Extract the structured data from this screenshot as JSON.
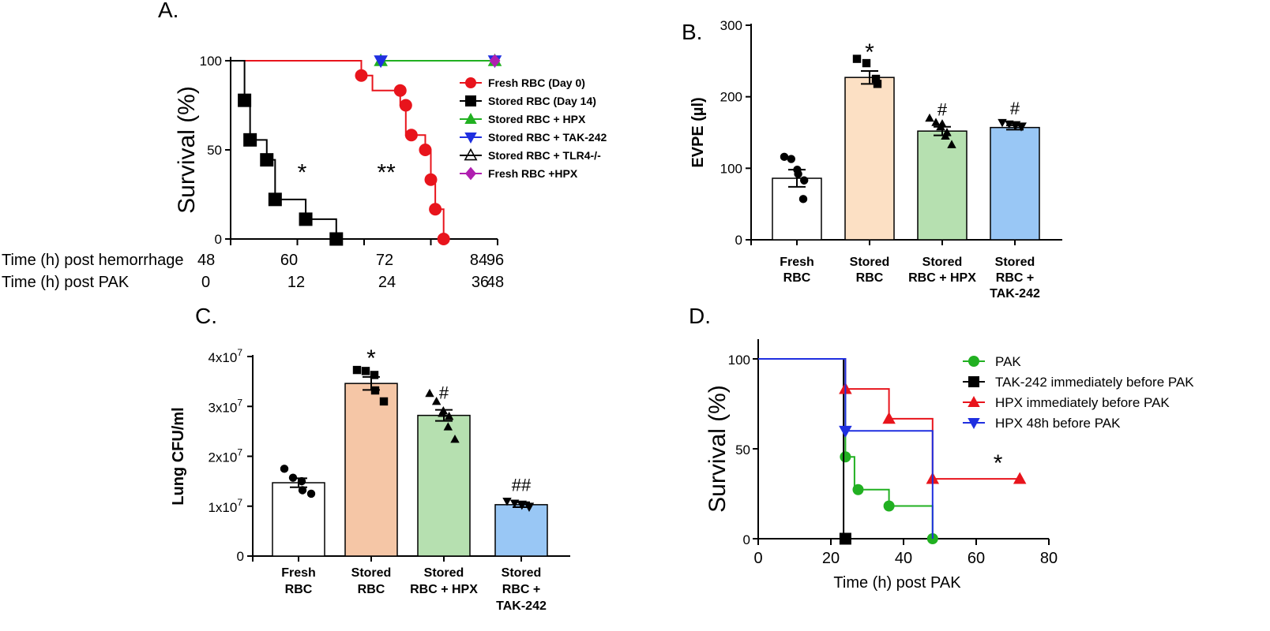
{
  "chart_data": [
    {
      "panel": "A.",
      "type": "line",
      "ylabel": "Survival (%)",
      "xrow_labels": [
        "Time (h) post hemorrhage",
        "Time (h) post PAK"
      ],
      "x_ticks_hemorrhage": [
        "48",
        "60",
        "72",
        "84",
        "96"
      ],
      "x_ticks_pak": [
        "0",
        "12",
        "24",
        "36",
        "48"
      ],
      "y_ticks": [
        "0",
        "50",
        "100"
      ],
      "xlim": [
        48,
        96
      ],
      "ylim": [
        0,
        100
      ],
      "legend": [
        {
          "label": "Fresh RBC (Day 0)",
          "color": "#e8141c",
          "marker": "circle"
        },
        {
          "label": "Stored RBC (Day 14)",
          "color": "#000000",
          "marker": "square"
        },
        {
          "label": "Stored RBC + HPX",
          "color": "#21b021",
          "marker": "triangle-up"
        },
        {
          "label": "Stored RBC + TAK-242",
          "color": "#1f2fe0",
          "marker": "triangle-down"
        },
        {
          "label": "Stored RBC + TLR4-/-",
          "color": "#000000",
          "marker": "triangle-open"
        },
        {
          "label": "Fresh RBC +HPX",
          "color": "#b01fb0",
          "marker": "diamond"
        }
      ],
      "series": [
        {
          "id": "fresh",
          "color": "#e8141c",
          "marker": "circle",
          "points": [
            [
              48,
              100
            ],
            [
              71.5,
              100
            ],
            [
              71.5,
              91.7
            ],
            [
              73.5,
              91.7
            ],
            [
              73.5,
              83.3
            ],
            [
              78.5,
              83.3
            ],
            [
              78.5,
              75
            ],
            [
              79.5,
              75
            ],
            [
              79.5,
              58.3
            ],
            [
              83,
              58.3
            ],
            [
              83,
              50
            ],
            [
              84,
              50
            ],
            [
              84,
              33.3
            ],
            [
              84.8,
              33.3
            ],
            [
              84.8,
              16.7
            ],
            [
              86.3,
              16.7
            ],
            [
              86.3,
              0
            ]
          ],
          "markers": [
            [
              71.5,
              91.7
            ],
            [
              78.5,
              83.3
            ],
            [
              79.5,
              75
            ],
            [
              80.5,
              58.3
            ],
            [
              83,
              50
            ],
            [
              84,
              33.3
            ],
            [
              84.8,
              16.7
            ],
            [
              86.3,
              0
            ]
          ]
        },
        {
          "id": "stored",
          "color": "#000000",
          "marker": "square",
          "points": [
            [
              48,
              100
            ],
            [
              50.5,
              100
            ],
            [
              50.5,
              77.8
            ],
            [
              51.5,
              77.8
            ],
            [
              51.5,
              55.6
            ],
            [
              54.5,
              55.6
            ],
            [
              54.5,
              44.4
            ],
            [
              56,
              44.4
            ],
            [
              56,
              22.2
            ],
            [
              61.5,
              22.2
            ],
            [
              61.5,
              11.1
            ],
            [
              67,
              11.1
            ],
            [
              67,
              0
            ]
          ],
          "markers": [
            [
              50.5,
              77.8
            ],
            [
              51.5,
              55.6
            ],
            [
              54.5,
              44.4
            ],
            [
              56,
              22.2
            ],
            [
              61.5,
              11.1
            ],
            [
              67,
              0
            ]
          ]
        },
        {
          "id": "hpx",
          "color": "#21b021",
          "marker": "triangle-up",
          "points": [
            [
              75,
              100
            ],
            [
              95.5,
              100
            ]
          ],
          "markers": [
            [
              75,
              100
            ],
            [
              95.5,
              100
            ]
          ]
        },
        {
          "id": "tak",
          "color": "#1f2fe0",
          "marker": "triangle-down",
          "points": [],
          "markers": [
            [
              75,
              100
            ],
            [
              95.5,
              100
            ]
          ]
        },
        {
          "id": "tlr4",
          "color": "#000000",
          "marker": "triangle-open",
          "points": [],
          "markers": []
        },
        {
          "id": "freshhpx",
          "color": "#b01fb0",
          "marker": "diamond",
          "points": [],
          "markers": [
            [
              95.5,
              100
            ]
          ]
        }
      ],
      "annotations": [
        {
          "text": "*",
          "x": 60,
          "y": 40
        },
        {
          "text": "**",
          "x": 76,
          "y": 40
        }
      ]
    },
    {
      "panel": "B.",
      "type": "bar",
      "ylabel": "EVPE (µl)",
      "categories": [
        [
          "Fresh",
          "RBC"
        ],
        [
          "Stored",
          "RBC"
        ],
        [
          "Stored",
          "RBC + HPX"
        ],
        [
          "Stored",
          "RBC +",
          "TAK-242"
        ]
      ],
      "values": [
        86,
        227,
        152,
        157
      ],
      "errors": [
        12,
        9,
        6,
        3
      ],
      "colors": [
        "#ffffff",
        "#fce0c4",
        "#b6e0b0",
        "#99c7f5"
      ],
      "markers": [
        "circle",
        "square",
        "triangle-up",
        "triangle-down"
      ],
      "points": [
        [
          116,
          113,
          92,
          98,
          83,
          57
        ],
        [
          253,
          247,
          225,
          218
        ],
        [
          170,
          164,
          162,
          158,
          150,
          145,
          133
        ],
        [
          164,
          162,
          161,
          160,
          159,
          158
        ]
      ],
      "ylim": [
        0,
        300
      ],
      "y_ticks": [
        "0",
        "100",
        "200",
        "300"
      ],
      "annotations": [
        "",
        "*",
        "#",
        "#"
      ]
    },
    {
      "panel": "C.",
      "type": "bar",
      "ylabel": "Lung CFU/ml",
      "categories": [
        [
          "Fresh",
          "RBC"
        ],
        [
          "Stored",
          "RBC"
        ],
        [
          "Stored",
          "RBC + HPX"
        ],
        [
          "Stored",
          "RBC +",
          "TAK-242"
        ]
      ],
      "values": [
        14700000,
        34600000,
        28200000,
        10300000
      ],
      "errors": [
        900000,
        1300000,
        1100000,
        500000
      ],
      "colors": [
        "#ffffff",
        "#f5c6a6",
        "#b6e0b0",
        "#99c7f5"
      ],
      "markers": [
        "circle",
        "square",
        "triangle-up",
        "triangle-down"
      ],
      "points": [
        [
          17500000,
          15700000,
          15000000,
          13200000,
          12500000
        ],
        [
          37300000,
          37100000,
          36300000,
          33200000,
          31000000
        ],
        [
          32600000,
          31000000,
          29100000,
          28600000,
          28000000,
          25900000,
          23400000
        ],
        [
          11000000,
          10600000,
          10400000,
          10200000,
          10000000,
          9800000
        ]
      ],
      "ylim": [
        0,
        40000000
      ],
      "y_ticks": [
        {
          "base": "1x10",
          "exp": "7",
          "value": 10000000
        },
        {
          "base": "2x10",
          "exp": "7",
          "value": 20000000
        },
        {
          "base": "3x10",
          "exp": "7",
          "value": 30000000
        },
        {
          "base": "4x10",
          "exp": "7",
          "value": 40000000
        }
      ],
      "y_zero": "0",
      "annotations": [
        "",
        "*",
        "#",
        "##"
      ]
    },
    {
      "panel": "D.",
      "type": "line",
      "ylabel": "Survival (%)",
      "xlabel": "Time (h) post PAK",
      "x_ticks": [
        "0",
        "20",
        "40",
        "60",
        "80"
      ],
      "y_ticks": [
        "0",
        "50",
        "100"
      ],
      "xlim": [
        0,
        80
      ],
      "ylim": [
        0,
        100
      ],
      "legend": [
        {
          "label": "PAK",
          "color": "#21b021",
          "marker": "circle"
        },
        {
          "label": "TAK-242 immediately before PAK",
          "color": "#000000",
          "marker": "square"
        },
        {
          "label": "HPX immediately before PAK",
          "color": "#e8141c",
          "marker": "triangle-up"
        },
        {
          "label": "HPX 48h before PAK",
          "color": "#1f2fe0",
          "marker": "triangle-down"
        }
      ],
      "series": [
        {
          "id": "pak",
          "color": "#21b021",
          "marker": "circle",
          "points": [
            [
              0,
              100
            ],
            [
              24,
              100
            ],
            [
              24,
              45.5
            ],
            [
              26.5,
              45.5
            ],
            [
              26.5,
              27.3
            ],
            [
              36,
              27.3
            ],
            [
              36,
              18.2
            ],
            [
              48,
              18.2
            ],
            [
              48,
              0
            ]
          ],
          "markers": [
            [
              24,
              45.5
            ],
            [
              27.5,
              27.3
            ],
            [
              36,
              18.2
            ],
            [
              48,
              0
            ]
          ]
        },
        {
          "id": "tak",
          "color": "#000000",
          "marker": "square",
          "points": [
            [
              0,
              100
            ],
            [
              23.5,
              100
            ],
            [
              23.5,
              0
            ],
            [
              24,
              0
            ]
          ],
          "markers": [
            [
              24,
              0
            ]
          ]
        },
        {
          "id": "hpx",
          "color": "#e8141c",
          "marker": "triangle-up",
          "points": [
            [
              0,
              100
            ],
            [
              24,
              100
            ],
            [
              24,
              83.3
            ],
            [
              36,
              83.3
            ],
            [
              36,
              66.7
            ],
            [
              48,
              66.7
            ],
            [
              48,
              33.3
            ],
            [
              72,
              33.3
            ]
          ],
          "markers": [
            [
              24,
              83.3
            ],
            [
              36,
              66.7
            ],
            [
              48,
              33.3
            ],
            [
              72,
              33.3
            ]
          ]
        },
        {
          "id": "hpx48",
          "color": "#1f2fe0",
          "marker": "triangle-down",
          "points": [
            [
              0,
              100
            ],
            [
              24,
              100
            ],
            [
              24,
              60
            ],
            [
              48,
              60
            ],
            [
              48,
              0
            ]
          ],
          "markers": [
            [
              24,
              60
            ]
          ]
        }
      ],
      "annotations": [
        {
          "text": "*",
          "x": 66,
          "y": 42
        }
      ]
    }
  ]
}
